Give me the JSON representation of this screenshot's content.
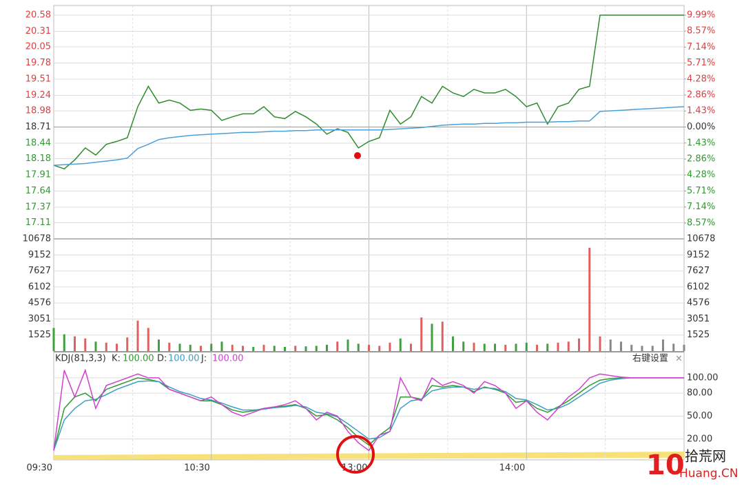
{
  "chart_data": [
    {
      "type": "line",
      "ylim": [
        16.84,
        20.58
      ],
      "yticks": [
        20.58,
        20.31,
        20.05,
        19.78,
        19.51,
        19.24,
        18.98,
        18.71,
        18.44,
        18.18,
        17.91,
        17.64,
        17.37,
        17.11
      ],
      "ytick_side": "left",
      "base": 18.71,
      "up_color": "#e03c3c",
      "down_color": "#2e9a2e",
      "flat_color": "#333333",
      "y2lim": [
        -9.99,
        9.99
      ],
      "y2ticks": [
        {
          "value": 9.99,
          "label": "9.99%"
        },
        {
          "value": 8.57,
          "label": "8.57%"
        },
        {
          "value": 7.14,
          "label": "7.14%"
        },
        {
          "value": 5.71,
          "label": "5.71%"
        },
        {
          "value": 4.28,
          "label": "4.28%"
        },
        {
          "value": 2.86,
          "label": "2.86%"
        },
        {
          "value": 1.43,
          "label": "1.43%"
        },
        {
          "value": 0,
          "label": "0.00%"
        },
        {
          "value": -1.43,
          "label": "1.43%"
        },
        {
          "value": -2.86,
          "label": "2.86%"
        },
        {
          "value": -4.28,
          "label": "4.28%"
        },
        {
          "value": -5.71,
          "label": "5.71%"
        },
        {
          "value": -7.14,
          "label": "7.14%"
        },
        {
          "value": -8.57,
          "label": "8.57%"
        }
      ],
      "grid": true,
      "series": [
        {
          "color": "#2e8b2e",
          "values": [
            18.07,
            18.01,
            18.16,
            18.36,
            18.24,
            18.42,
            18.47,
            18.53,
            19.05,
            19.39,
            19.11,
            19.16,
            19.11,
            18.99,
            19.01,
            18.99,
            18.82,
            18.88,
            18.93,
            18.93,
            19.05,
            18.88,
            18.85,
            18.97,
            18.88,
            18.76,
            18.59,
            18.68,
            18.62,
            18.36,
            18.47,
            18.53,
            18.99,
            18.76,
            18.88,
            19.22,
            19.11,
            19.39,
            19.28,
            19.22,
            19.34,
            19.28,
            19.28,
            19.34,
            19.22,
            19.05,
            19.11,
            18.76,
            19.05,
            19.11,
            19.34,
            19.39,
            20.58,
            20.58,
            20.58,
            20.58,
            20.58,
            20.58,
            20.58,
            20.58,
            20.58
          ]
        },
        {
          "color": "#4a9fd8",
          "values": [
            18.07,
            18.08,
            18.09,
            18.1,
            18.12,
            18.14,
            18.16,
            18.19,
            18.35,
            18.42,
            18.5,
            18.53,
            18.55,
            18.57,
            18.58,
            18.59,
            18.6,
            18.61,
            18.62,
            18.62,
            18.63,
            18.64,
            18.64,
            18.65,
            18.65,
            18.66,
            18.66,
            18.66,
            18.66,
            18.66,
            18.66,
            18.66,
            18.67,
            18.68,
            18.69,
            18.7,
            18.72,
            18.74,
            18.75,
            18.76,
            18.76,
            18.77,
            18.77,
            18.78,
            18.78,
            18.79,
            18.79,
            18.79,
            18.8,
            18.8,
            18.81,
            18.81,
            18.97,
            18.98,
            18.99,
            19.0,
            19.01,
            19.02,
            19.03,
            19.04,
            19.05
          ]
        }
      ]
    },
    {
      "type": "bar",
      "ylim": [
        0,
        10678
      ],
      "yticks": [
        10678,
        9152,
        7627,
        6102,
        4576,
        3051,
        1525
      ],
      "ytick_side": "both",
      "grid": true,
      "values": [
        2200,
        1600,
        1400,
        1200,
        900,
        800,
        700,
        1300,
        2900,
        2200,
        1100,
        800,
        700,
        600,
        500,
        700,
        900,
        600,
        500,
        400,
        600,
        500,
        400,
        500,
        450,
        500,
        600,
        900,
        1100,
        700,
        600,
        500,
        800,
        1200,
        700,
        3200,
        2600,
        2800,
        1400,
        900,
        800,
        700,
        700,
        600,
        700,
        800,
        600,
        700,
        800,
        900,
        1200,
        9830,
        1400,
        1100,
        900,
        600,
        500,
        500,
        1100,
        700,
        600
      ],
      "colors": [
        "#40a040",
        "#40a040",
        "#e06060",
        "#e06060",
        "#40a040",
        "#e06060",
        "#e06060",
        "#e06060",
        "#e06060",
        "#e06060",
        "#40a040",
        "#e06060",
        "#40a040",
        "#40a040",
        "#e06060",
        "#40a040",
        "#40a040",
        "#e06060",
        "#e06060",
        "#40a040",
        "#e06060",
        "#40a040",
        "#40a040",
        "#e06060",
        "#40a040",
        "#40a040",
        "#40a040",
        "#e06060",
        "#40a040",
        "#40a040",
        "#e06060",
        "#e06060",
        "#e06060",
        "#40a040",
        "#e06060",
        "#e06060",
        "#40a040",
        "#e06060",
        "#40a040",
        "#40a040",
        "#e06060",
        "#40a040",
        "#40a040",
        "#e06060",
        "#40a040",
        "#40a040",
        "#e06060",
        "#40a040",
        "#e06060",
        "#e06060",
        "#e06060",
        "#e06060",
        "#e06060",
        "#888888",
        "#888888",
        "#888888",
        "#888888",
        "#888888",
        "#888888",
        "#888888",
        "#888888"
      ]
    },
    {
      "type": "line",
      "title": "KDJ(81,3,3)",
      "settings_label": "右键设置",
      "close_label": "×",
      "ylim": [
        0,
        135
      ],
      "yticks": [
        {
          "value": 100,
          "label": "100.00"
        },
        {
          "value": 80,
          "label": "80.00"
        },
        {
          "value": 50,
          "label": "50.00"
        },
        {
          "value": 20,
          "label": "20.00"
        }
      ],
      "ytick_side": "right",
      "grid": true,
      "series": [
        {
          "name": "K:",
          "readout": "100.00",
          "color": "#2e9a2e",
          "values": [
            5,
            60,
            75,
            80,
            70,
            85,
            90,
            95,
            100,
            98,
            95,
            85,
            80,
            75,
            70,
            70,
            65,
            58,
            55,
            57,
            60,
            62,
            63,
            65,
            60,
            50,
            52,
            45,
            35,
            22,
            12,
            25,
            35,
            75,
            75,
            72,
            90,
            88,
            90,
            88,
            82,
            88,
            85,
            80,
            68,
            70,
            60,
            55,
            62,
            70,
            80,
            90,
            97,
            99,
            100,
            100,
            100,
            100,
            100,
            100,
            100
          ]
        },
        {
          "name": "D:",
          "readout": "100.00",
          "color": "#3a9fc0",
          "values": [
            5,
            45,
            60,
            70,
            72,
            78,
            85,
            90,
            95,
            96,
            95,
            88,
            82,
            78,
            73,
            71,
            67,
            62,
            58,
            58,
            59,
            61,
            62,
            64,
            62,
            55,
            53,
            49,
            40,
            30,
            20,
            22,
            30,
            60,
            70,
            72,
            83,
            86,
            88,
            88,
            85,
            87,
            86,
            82,
            73,
            71,
            65,
            58,
            60,
            66,
            75,
            84,
            93,
            97,
            99,
            100,
            100,
            100,
            100,
            100,
            100
          ]
        },
        {
          "name": "J:",
          "readout": "100.00",
          "color": "#d040d0",
          "values": [
            5,
            110,
            75,
            110,
            60,
            90,
            95,
            100,
            105,
            100,
            100,
            85,
            80,
            75,
            70,
            75,
            65,
            55,
            50,
            55,
            60,
            62,
            65,
            70,
            60,
            45,
            55,
            50,
            30,
            15,
            5,
            25,
            30,
            100,
            75,
            70,
            100,
            90,
            95,
            90,
            80,
            95,
            90,
            80,
            60,
            70,
            55,
            45,
            60,
            75,
            85,
            100,
            105,
            103,
            101,
            100,
            100,
            100,
            100,
            100,
            100
          ]
        }
      ]
    }
  ],
  "time_axis": {
    "xlim": [
      0,
      60
    ],
    "xticks": [
      {
        "value": 0,
        "label": "09:30"
      },
      {
        "value": 15,
        "label": "10:30"
      },
      {
        "value": 30,
        "label": "13:00"
      },
      {
        "value": 45,
        "label": "14:00"
      }
    ]
  },
  "watermark": {
    "logo": "10",
    "site": "拾荒网",
    "domain": "Huang.CN"
  }
}
